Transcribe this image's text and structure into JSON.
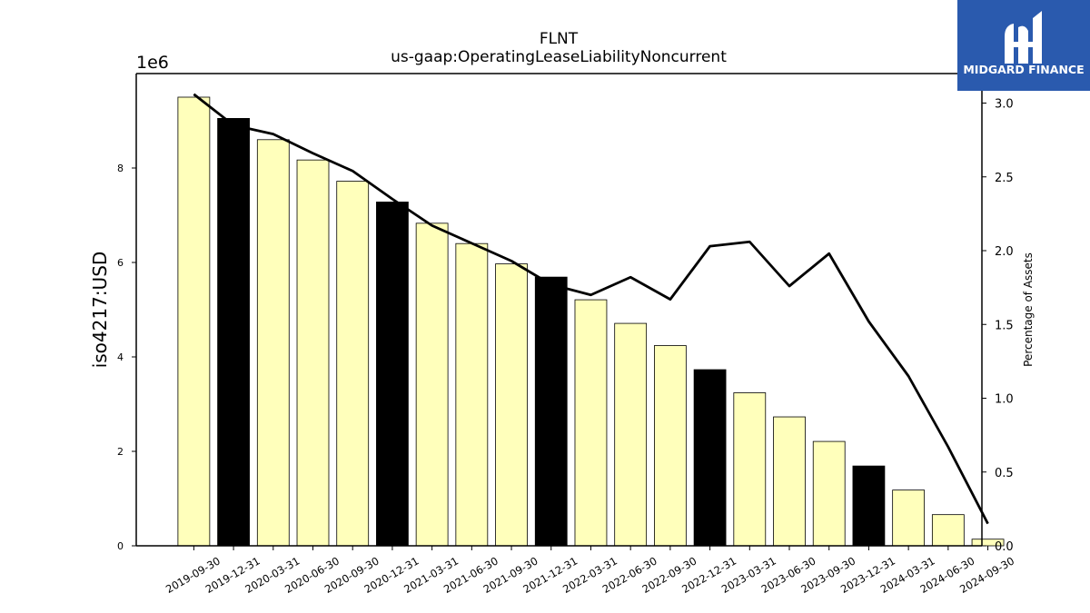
{
  "chart_data": {
    "type": "bar",
    "title": "FLNT",
    "subtitle": "us-gaap:OperatingLeaseLiabilityNoncurrent",
    "ylabel": "iso4217:USD",
    "y_offset_label": "1e6",
    "y2label": "Percentage of Assets",
    "categories": [
      "2019-09-30",
      "2019-12-31",
      "2020-03-31",
      "2020-06-30",
      "2020-09-30",
      "2020-12-31",
      "2021-03-31",
      "2021-06-30",
      "2021-09-30",
      "2021-12-31",
      "2022-03-31",
      "2022-06-30",
      "2022-09-30",
      "2022-12-31",
      "2023-03-31",
      "2023-06-30",
      "2023-09-30",
      "2023-12-31",
      "2024-03-31",
      "2024-06-30",
      "2024-09-30"
    ],
    "values": [
      9500000,
      9050000,
      8600000,
      8170000,
      7720000,
      7280000,
      6830000,
      6400000,
      5970000,
      5690000,
      5210000,
      4710000,
      4240000,
      3730000,
      3240000,
      2730000,
      2210000,
      1690000,
      1180000,
      660000,
      140000
    ],
    "highlight_indices": [
      1,
      5,
      9,
      13,
      17
    ],
    "bar_color": "#FFFFBB",
    "highlight_color": "#000000",
    "line_series": {
      "name": "Percentage of Assets",
      "values": [
        3.06,
        2.85,
        2.79,
        2.66,
        2.54,
        2.35,
        2.17,
        2.05,
        1.93,
        1.77,
        1.7,
        1.82,
        1.67,
        2.03,
        2.06,
        1.76,
        1.98,
        1.52,
        1.15,
        0.67,
        0.15
      ],
      "color": "#000000"
    },
    "ylim": [
      0,
      10000000
    ],
    "y_ticks": [
      0,
      2,
      4,
      6,
      8
    ],
    "y2lim": [
      0,
      3.2
    ],
    "y2_ticks": [
      "0.0",
      "0.5",
      "1.0",
      "1.5",
      "2.0",
      "2.5",
      "3.0"
    ],
    "grid": false
  },
  "logo": {
    "text": "MIDGARD FINANCE",
    "background": "#2A5AAE"
  }
}
